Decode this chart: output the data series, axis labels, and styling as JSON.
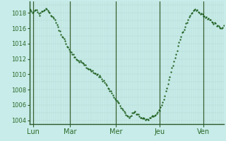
{
  "background_color": "#c8ece9",
  "plot_bg_color": "#c8ece9",
  "line_color": "#1a5c1a",
  "grid_minor_color": "#b0d8d0",
  "grid_major_color": "#90bfb8",
  "tick_label_color": "#2a6a2a",
  "axis_color": "#2a5a2a",
  "ylim": [
    1003.5,
    1019.5
  ],
  "yticks": [
    1004,
    1006,
    1008,
    1010,
    1012,
    1014,
    1016,
    1018
  ],
  "day_labels": [
    "Lun",
    "Mar",
    "Mer",
    "Jeu",
    "Ven"
  ],
  "day_positions": [
    0.02,
    0.21,
    0.445,
    0.67,
    0.895
  ],
  "vline_positions": [
    0.02,
    0.21,
    0.445,
    0.67,
    0.895
  ],
  "total_hours": 192,
  "pressure_data": [
    1018.5,
    1018.3,
    1018.1,
    1018.0,
    1018.2,
    1018.4,
    1018.5,
    1018.3,
    1018.1,
    1017.9,
    1017.8,
    1017.9,
    1018.1,
    1018.3,
    1018.4,
    1018.5,
    1018.6,
    1018.5,
    1018.3,
    1018.2,
    1018.0,
    1017.8,
    1017.6,
    1017.5,
    1017.3,
    1017.0,
    1016.8,
    1016.5,
    1016.2,
    1015.9,
    1015.6,
    1015.3,
    1015.0,
    1014.7,
    1014.5,
    1014.3,
    1014.0,
    1013.7,
    1013.5,
    1013.3,
    1013.1,
    1012.9,
    1012.7,
    1012.5,
    1012.3,
    1012.2,
    1012.0,
    1011.9,
    1011.8,
    1011.7,
    1011.6,
    1011.5,
    1011.4,
    1011.3,
    1011.2,
    1011.1,
    1011.0,
    1010.9,
    1010.8,
    1010.7,
    1010.6,
    1010.5,
    1010.4,
    1010.3,
    1010.2,
    1010.1,
    1010.0,
    1009.9,
    1009.8,
    1009.7,
    1009.6,
    1009.5,
    1009.3,
    1009.1,
    1008.9,
    1008.7,
    1008.5,
    1008.3,
    1008.1,
    1007.9,
    1007.7,
    1007.5,
    1007.3,
    1007.1,
    1006.9,
    1006.7,
    1006.5,
    1006.3,
    1006.1,
    1005.9,
    1005.7,
    1005.5,
    1005.3,
    1005.1,
    1004.9,
    1004.7,
    1004.6,
    1004.5,
    1004.5,
    1004.6,
    1004.7,
    1004.9,
    1005.0,
    1005.1,
    1005.0,
    1004.9,
    1004.8,
    1004.7,
    1004.6,
    1004.5,
    1004.4,
    1004.3,
    1004.2,
    1004.1,
    1004.05,
    1004.0,
    1004.05,
    1004.1,
    1004.2,
    1004.3,
    1004.4,
    1004.5,
    1004.6,
    1004.7,
    1004.8,
    1004.9,
    1005.0,
    1005.2,
    1005.4,
    1005.7,
    1006.0,
    1006.4,
    1006.8,
    1007.2,
    1007.7,
    1008.2,
    1008.7,
    1009.2,
    1009.7,
    1010.2,
    1010.7,
    1011.2,
    1011.7,
    1012.2,
    1012.7,
    1013.2,
    1013.7,
    1014.2,
    1014.7,
    1015.0,
    1015.3,
    1015.6,
    1015.9,
    1016.2,
    1016.5,
    1016.8,
    1017.1,
    1017.4,
    1017.7,
    1017.9,
    1018.1,
    1018.3,
    1018.4,
    1018.5,
    1018.4,
    1018.3,
    1018.2,
    1018.1,
    1018.0,
    1017.9,
    1017.8,
    1017.7,
    1017.6,
    1017.5,
    1017.4,
    1017.3,
    1017.2,
    1017.1,
    1017.0,
    1016.9,
    1016.8,
    1016.7,
    1016.6,
    1016.5,
    1016.4,
    1016.3,
    1016.2,
    1016.1,
    1016.0,
    1016.1,
    1016.2,
    1016.3
  ]
}
